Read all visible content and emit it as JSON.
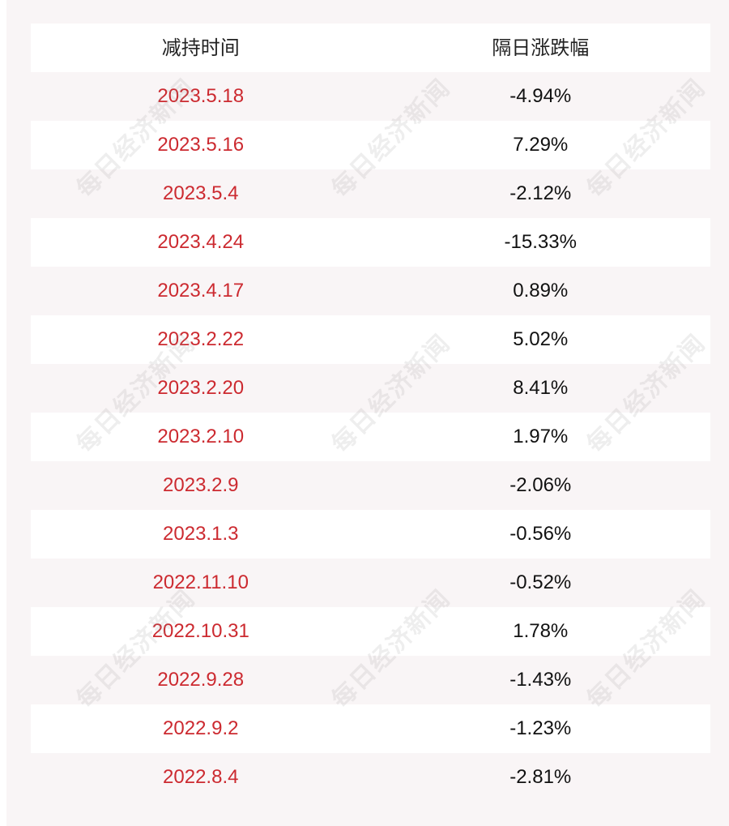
{
  "table": {
    "headers": {
      "date": "减持时间",
      "change": "隔日涨跌幅"
    },
    "rows": [
      {
        "date": "2023.5.18",
        "change": "-4.94%"
      },
      {
        "date": "2023.5.16",
        "change": "7.29%"
      },
      {
        "date": "2023.5.4",
        "change": "-2.12%"
      },
      {
        "date": "2023.4.24",
        "change": "-15.33%"
      },
      {
        "date": "2023.4.17",
        "change": "0.89%"
      },
      {
        "date": "2023.2.22",
        "change": "5.02%"
      },
      {
        "date": "2023.2.20",
        "change": "8.41%"
      },
      {
        "date": "2023.2.10",
        "change": "1.97%"
      },
      {
        "date": "2023.2.9",
        "change": "-2.06%"
      },
      {
        "date": "2023.1.3",
        "change": "-0.56%"
      },
      {
        "date": "2022.11.10",
        "change": "-0.52%"
      },
      {
        "date": "2022.10.31",
        "change": "1.78%"
      },
      {
        "date": "2022.9.28",
        "change": "-1.43%"
      },
      {
        "date": "2022.9.2",
        "change": "-1.23%"
      },
      {
        "date": "2022.8.4",
        "change": "-2.81%"
      }
    ]
  },
  "watermark": {
    "text": "每日经济新闻"
  },
  "colors": {
    "date_text": "#cc2a30",
    "change_text": "#111111",
    "row_light": "#ffffff",
    "row_tinted": "#f9f5f6"
  }
}
